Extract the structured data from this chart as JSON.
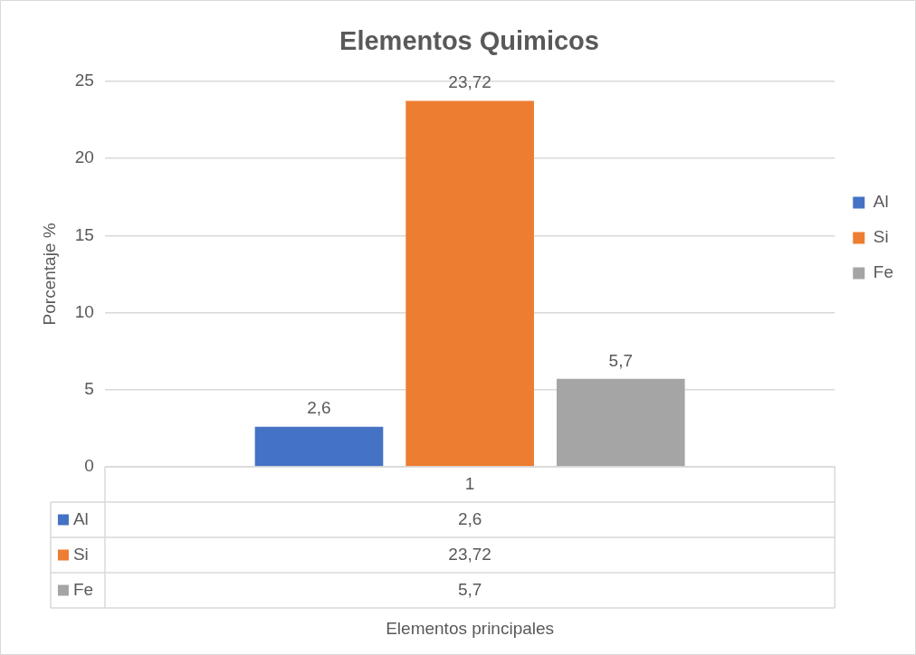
{
  "chart_data": {
    "type": "bar",
    "title": "Elementos Quimicos",
    "ylabel": "Porcentaje %",
    "annotations": [
      "Elementos principales"
    ],
    "categories": [
      "1"
    ],
    "series": [
      {
        "name": "Al",
        "color": "#4472c4",
        "values": [
          2.6
        ],
        "value_labels": [
          "2,6"
        ]
      },
      {
        "name": "Si",
        "color": "#ed7d31",
        "values": [
          23.72
        ],
        "value_labels": [
          "23,72"
        ]
      },
      {
        "name": "Fe",
        "color": "#a5a5a5",
        "values": [
          5.7
        ],
        "value_labels": [
          "5,7"
        ]
      }
    ],
    "ylim": [
      0,
      25
    ],
    "yticks": [
      0,
      5,
      10,
      15,
      20,
      25
    ],
    "grid": "y",
    "legend": "right",
    "data_labels": true
  }
}
